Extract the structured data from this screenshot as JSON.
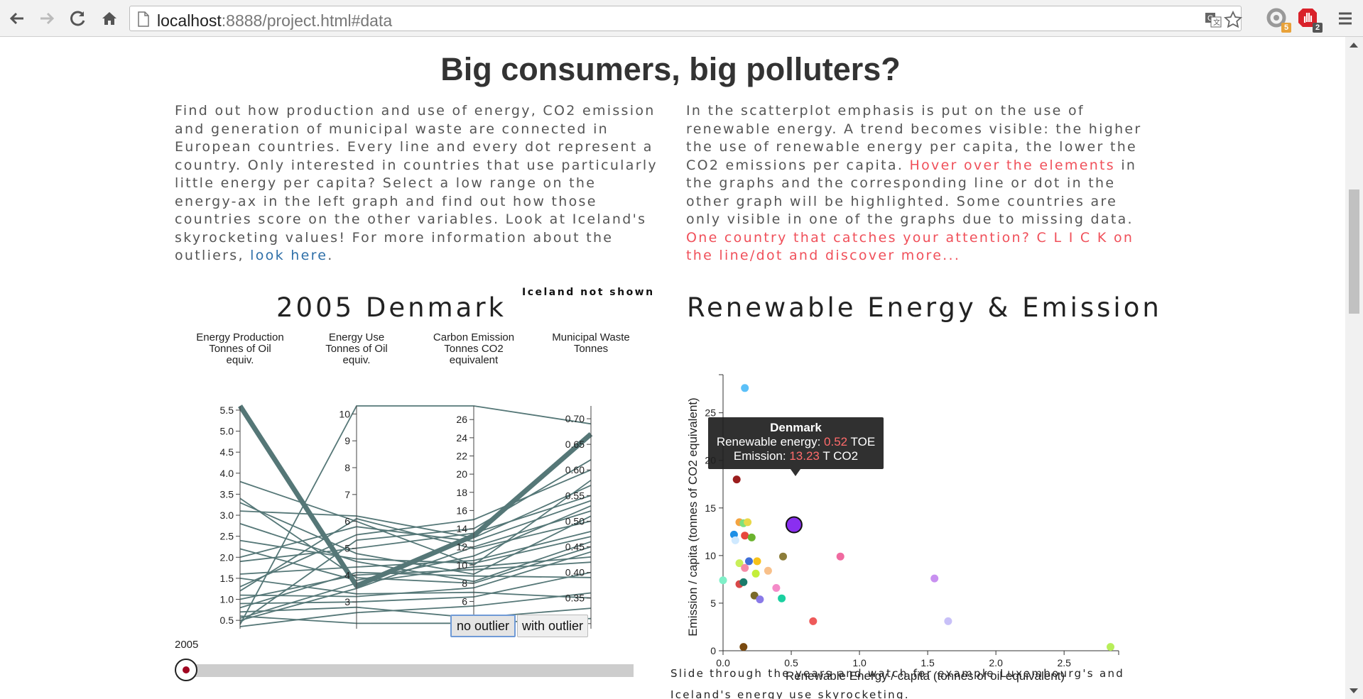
{
  "browser": {
    "url_host": "localhost",
    "url_rest": ":8888/project.html#data",
    "ext_badges": [
      "5",
      "2"
    ]
  },
  "page": {
    "title": "Big consumers, big polluters?",
    "intro_left": {
      "text": "Find out how production and use of energy, CO2 emission and generation of municipal waste are connected in European countries. Every line and every dot represent a country. Only interested in countries that use particularly little energy per capita? Select a low range on the energy-ax in the left graph and find out how those countries score on the other variables. Look at Iceland's skyrocketing values! For more information about the outliers,",
      "link": "look here",
      "end": "."
    },
    "intro_right": {
      "text1": "In the scatterplot emphasis is put on the use of renewable energy. A trend becomes visible: the higher the use of renewable energy per capita, the lower the CO2 emissions per capita.",
      "hl1": "Hover over the elements",
      "text2": "in the graphs and the corresponding line or dot in the other graph will be highlighted. Some countries are only visible in one of the graphs due to missing data.",
      "hl2": "One country that catches your attention? C L I C K on the line/dot and discover more..."
    }
  },
  "parallel": {
    "title": "2005 Denmark",
    "note": "Iceland not shown",
    "buttons": {
      "no_outlier": "no outlier",
      "with_outlier": "with outlier"
    },
    "slider": {
      "year": "2005",
      "value": 0.0
    },
    "line_color": "#557777",
    "axes": [
      {
        "label": [
          "Energy Production",
          "Tonnes of Oil",
          "equiv."
        ],
        "min": 0.3,
        "max": 5.6,
        "ticks": [
          "0.5",
          "1.0",
          "1.5",
          "2.0",
          "2.5",
          "3.0",
          "3.5",
          "4.0",
          "4.5",
          "5.0",
          "5.5"
        ]
      },
      {
        "label": [
          "Energy Use",
          "Tonnes of Oil",
          "equiv."
        ],
        "min": 2.0,
        "max": 10.3,
        "ticks": [
          "3",
          "4",
          "5",
          "6",
          "7",
          "8",
          "9",
          "10"
        ]
      },
      {
        "label": [
          "Carbon Emission",
          "Tonnes CO2",
          "equivalent"
        ],
        "min": 3.0,
        "max": 27.5,
        "ticks": [
          "4",
          "6",
          "8",
          "10",
          "12",
          "14",
          "16",
          "18",
          "20",
          "22",
          "24",
          "26"
        ]
      },
      {
        "label": [
          "Municipal Waste",
          "Tonnes"
        ],
        "min": 0.29,
        "max": 0.725,
        "ticks": [
          "0.30",
          "0.35",
          "0.40",
          "0.45",
          "0.50",
          "0.55",
          "0.60",
          "0.65",
          "0.70"
        ]
      }
    ],
    "highlight_country": "Denmark",
    "highlight": [
      5.6,
      3.6,
      13.23,
      0.67
    ],
    "lines": [
      [
        3.8,
        6.0,
        10.0,
        0.58
      ],
      [
        3.3,
        4.8,
        9.0,
        0.51
      ],
      [
        3.1,
        6.2,
        13.0,
        0.57
      ],
      [
        2.8,
        4.5,
        8.2,
        0.46
      ],
      [
        2.2,
        3.8,
        11.0,
        0.53
      ],
      [
        1.9,
        5.0,
        13.5,
        0.55
      ],
      [
        1.6,
        4.3,
        10.5,
        0.48
      ],
      [
        1.3,
        5.5,
        15.0,
        0.6
      ],
      [
        1.1,
        3.2,
        7.5,
        0.44
      ],
      [
        1.0,
        4.0,
        9.5,
        0.42
      ],
      [
        0.9,
        3.0,
        6.5,
        0.4
      ],
      [
        0.7,
        2.8,
        4.2,
        0.33
      ],
      [
        0.5,
        3.5,
        12.0,
        0.52
      ],
      [
        0.4,
        10.3,
        27.5,
        0.69
      ],
      [
        0.35,
        2.6,
        5.5,
        0.36
      ],
      [
        3.4,
        3.9,
        8.0,
        0.45
      ],
      [
        2.4,
        4.6,
        10.2,
        0.47
      ],
      [
        1.2,
        6.1,
        11.8,
        0.5
      ],
      [
        0.6,
        2.2,
        3.6,
        0.31
      ],
      [
        0.45,
        5.3,
        14.0,
        0.62
      ],
      [
        0.8,
        4.1,
        8.8,
        0.39
      ],
      [
        1.5,
        3.3,
        7.0,
        0.35
      ],
      [
        2.0,
        5.8,
        12.6,
        0.54
      ],
      [
        0.55,
        3.7,
        9.8,
        0.43
      ]
    ]
  },
  "scatter": {
    "title": "Renewable Energy & Emission",
    "chart_data": {
      "type": "scatter",
      "xlabel": "Renewable Energy / capita (tonnes of oil equivalent)",
      "ylabel": "Emission / capita (tonnes of CO2 equivalent)",
      "xlim": [
        0,
        2.9
      ],
      "ylim": [
        0,
        29
      ],
      "xticks": [
        "0.0",
        "0.5",
        "1.0",
        "1.5",
        "2.0",
        "2.5"
      ],
      "yticks": [
        "0",
        "5",
        "10",
        "15",
        "20",
        "25"
      ],
      "points": [
        {
          "x": 0.16,
          "y": 27.6,
          "color": "#5bc0f8"
        },
        {
          "x": 0.1,
          "y": 18.0,
          "color": "#9b1d1d"
        },
        {
          "x": 0.12,
          "y": 13.5,
          "color": "#f4a340"
        },
        {
          "x": 0.15,
          "y": 13.4,
          "color": "#7ee07e"
        },
        {
          "x": 0.18,
          "y": 13.5,
          "color": "#e8d84a"
        },
        {
          "x": 0.08,
          "y": 12.2,
          "color": "#1d8fe6"
        },
        {
          "x": 0.09,
          "y": 11.6,
          "color": "#cfe9ff"
        },
        {
          "x": 0.16,
          "y": 12.1,
          "color": "#e8463c"
        },
        {
          "x": 0.21,
          "y": 11.9,
          "color": "#6bb32e"
        },
        {
          "x": 0.12,
          "y": 9.2,
          "color": "#c9ef5a"
        },
        {
          "x": 0.16,
          "y": 8.7,
          "color": "#f58aa6"
        },
        {
          "x": 0.19,
          "y": 9.4,
          "color": "#3f6fd8"
        },
        {
          "x": 0.25,
          "y": 9.4,
          "color": "#f7c21a"
        },
        {
          "x": 0.24,
          "y": 8.1,
          "color": "#c4ee3a"
        },
        {
          "x": 0.33,
          "y": 8.4,
          "color": "#f8c08a"
        },
        {
          "x": 0.44,
          "y": 9.9,
          "color": "#8c7d3a"
        },
        {
          "x": 0.86,
          "y": 9.9,
          "color": "#f06aa0"
        },
        {
          "x": 0.0,
          "y": 7.4,
          "color": "#7ff0c8"
        },
        {
          "x": 0.12,
          "y": 7.0,
          "color": "#d94848"
        },
        {
          "x": 0.15,
          "y": 7.2,
          "color": "#1a7a6a"
        },
        {
          "x": 0.39,
          "y": 6.6,
          "color": "#f48ac8"
        },
        {
          "x": 0.23,
          "y": 5.8,
          "color": "#7a6a2a"
        },
        {
          "x": 0.27,
          "y": 5.4,
          "color": "#8a7ae8"
        },
        {
          "x": 0.43,
          "y": 5.5,
          "color": "#1ad0a0"
        },
        {
          "x": 1.55,
          "y": 7.6,
          "color": "#c890f0"
        },
        {
          "x": 0.66,
          "y": 3.1,
          "color": "#ee5a5a"
        },
        {
          "x": 1.65,
          "y": 3.1,
          "color": "#c8c0f8"
        },
        {
          "x": 0.15,
          "y": 0.4,
          "color": "#7a4a10"
        },
        {
          "x": 2.84,
          "y": 0.4,
          "color": "#b8ee5a"
        }
      ],
      "highlight": {
        "x": 0.52,
        "y": 13.23,
        "color": "#8a2ff0"
      }
    },
    "tooltip": {
      "name": "Denmark",
      "renew_label": "Renewable energy:",
      "renew_value": "0.52",
      "renew_unit": "TOE",
      "emis_label": "Emission:",
      "emis_value": "13.23",
      "emis_unit": "T CO2"
    },
    "caption": "Slide through the years and watch for example Luxembourg's and Iceland's energy use skyrocketing."
  }
}
